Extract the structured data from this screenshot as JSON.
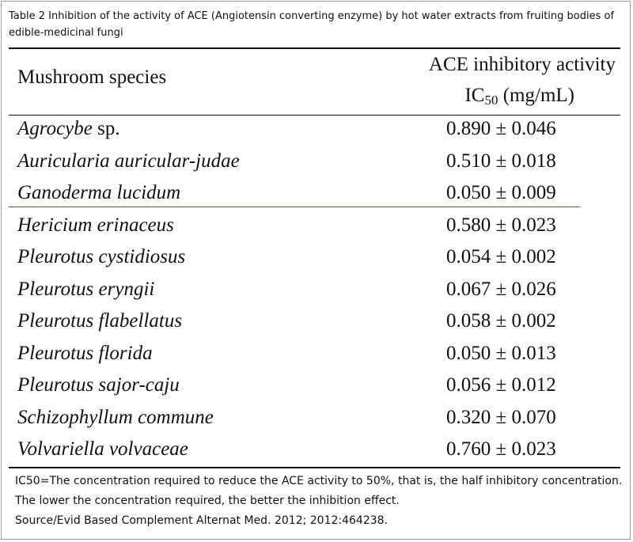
{
  "caption": "Table 2 Inhibition of the activity of ACE (Angiotensin converting enzyme) by hot water extracts from fruiting bodies of edible-medicinal fungi",
  "header": {
    "species": "Mushroom species",
    "activity_line1": "ACE inhibitory activity",
    "activity_ic": "IC",
    "activity_sub": "50",
    "activity_unit": " (mg/mL)"
  },
  "rows": [
    {
      "species_italic": "Agrocybe",
      "species_plain": " sp.",
      "value": "0.890 ± 0.046"
    },
    {
      "species_italic": "Auricularia auricular-judae",
      "species_plain": "",
      "value": "0.510 ± 0.018"
    },
    {
      "species_italic": "Ganoderma lucidum",
      "species_plain": "",
      "value": "0.050 ± 0.009"
    },
    {
      "species_italic": "Hericium erinaceus",
      "species_plain": "",
      "value": "0.580 ± 0.023"
    },
    {
      "species_italic": "Pleurotus cystidiosus",
      "species_plain": "",
      "value": "0.054 ± 0.002"
    },
    {
      "species_italic": "Pleurotus eryngii",
      "species_plain": "",
      "value": "0.067 ± 0.026"
    },
    {
      "species_italic": "Pleurotus flabellatus",
      "species_plain": "",
      "value": "0.058 ± 0.002"
    },
    {
      "species_italic": "Pleurotus florida",
      "species_plain": "",
      "value": "0.050 ± 0.013"
    },
    {
      "species_italic": "Pleurotus sajor-caju",
      "species_plain": "",
      "value": "0.056 ± 0.012"
    },
    {
      "species_italic": "Schizophyllum commune",
      "species_plain": "",
      "value": "0.320 ± 0.070"
    },
    {
      "species_italic": "Volvariella volvaceae",
      "species_plain": "",
      "value": "0.760 ± 0.023"
    }
  ],
  "notes": {
    "definition": "IC50=The concentration required to reduce the ACE activity to 50%, that is, the half inhibitory concentration. The lower the concentration required, the better the inhibition effect.",
    "source": "Source/Evid Based Complement Alternat Med. 2012; 2012:464238."
  },
  "colors": {
    "highlight_line": "#d02a3c",
    "rules": "#111111"
  }
}
